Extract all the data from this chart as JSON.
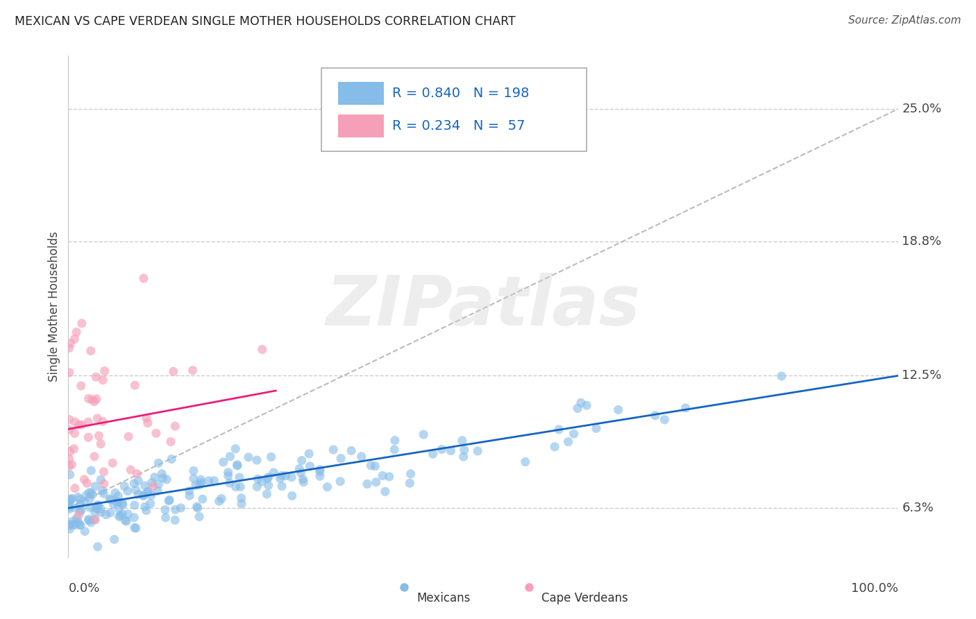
{
  "title": "MEXICAN VS CAPE VERDEAN SINGLE MOTHER HOUSEHOLDS CORRELATION CHART",
  "source": "Source: ZipAtlas.com",
  "ylabel": "Single Mother Households",
  "watermark": "ZIPatlas",
  "ytick_labels": [
    "6.3%",
    "12.5%",
    "18.8%",
    "25.0%"
  ],
  "ytick_values": [
    0.063,
    0.125,
    0.188,
    0.25
  ],
  "xlim": [
    0.0,
    1.0
  ],
  "ylim": [
    0.04,
    0.275
  ],
  "mexican_R": 0.84,
  "mexican_N": 198,
  "cape_verdean_R": 0.234,
  "cape_verdean_N": 57,
  "mexican_color": "#85bce8",
  "cape_verdean_color": "#f5a0b8",
  "mexican_line_color": "#1565c0",
  "cape_verdean_line_color": "#e91e7a",
  "dashed_line_color": "#bbbbbb",
  "grid_color": "#cccccc",
  "title_color": "#222222",
  "legend_text_color": "#1565c0",
  "background_color": "#ffffff",
  "mexican_line_x0": 0.0,
  "mexican_line_y0": 0.063,
  "mexican_line_x1": 1.0,
  "mexican_line_y1": 0.125,
  "cape_verdean_line_x0": 0.0,
  "cape_verdean_line_y0": 0.1,
  "cape_verdean_line_x1": 0.25,
  "cape_verdean_line_y1": 0.118,
  "dashed_line_x0": 0.0,
  "dashed_line_y0": 0.063,
  "dashed_line_x1": 1.0,
  "dashed_line_y1": 0.25
}
